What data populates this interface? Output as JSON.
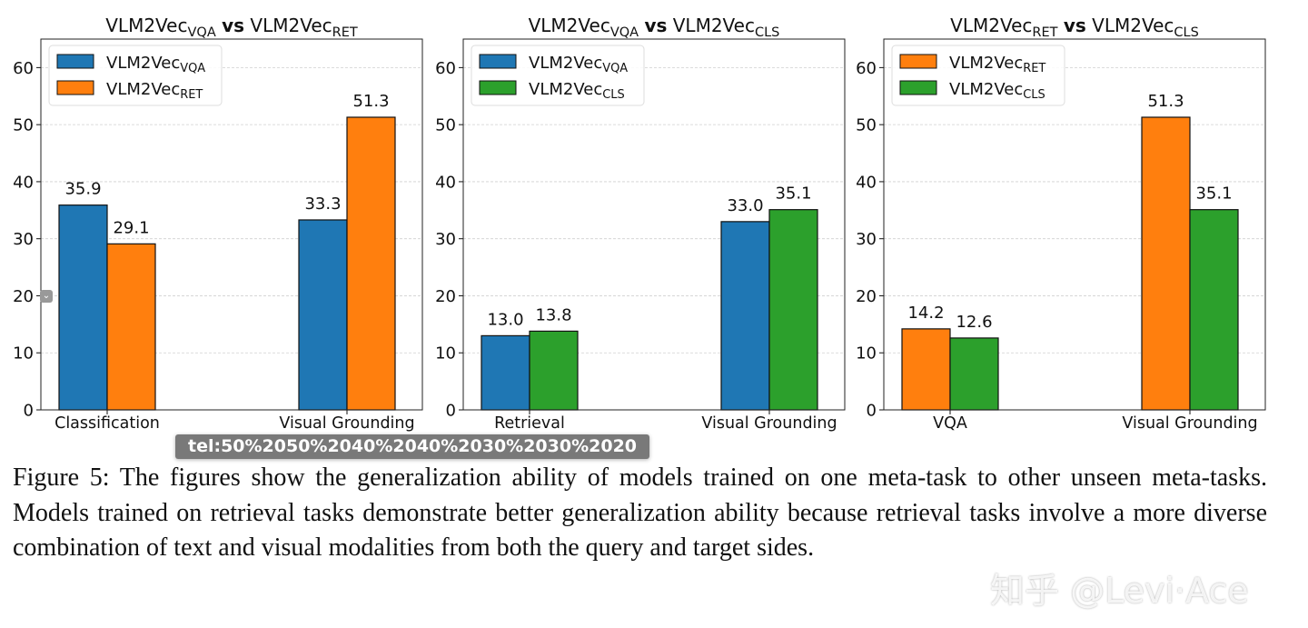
{
  "colors": {
    "VQA": "#1f77b4",
    "RET": "#ff7f0e",
    "CLS": "#2ca02c"
  },
  "chart_data": [
    {
      "type": "bar",
      "title": {
        "left": "VLM2Vec",
        "left_sub": "VQA",
        "vs": "vs",
        "right": "VLM2Vec",
        "right_sub": "RET"
      },
      "categories": [
        "Classification",
        "Visual Grounding"
      ],
      "series": [
        {
          "name": "VLM2Vec",
          "sub": "VQA",
          "color_key": "VQA",
          "values": [
            35.9,
            33.3
          ],
          "labels": [
            "35.9",
            "33.3"
          ]
        },
        {
          "name": "VLM2Vec",
          "sub": "RET",
          "color_key": "RET",
          "values": [
            29.1,
            51.3
          ],
          "labels": [
            "29.1",
            "51.3"
          ]
        }
      ],
      "yticks": [
        "0",
        "10",
        "20",
        "30",
        "40",
        "50",
        "60"
      ],
      "ylim": [
        0,
        65
      ],
      "grid": true,
      "legend": "top-left"
    },
    {
      "type": "bar",
      "title": {
        "left": "VLM2Vec",
        "left_sub": "VQA",
        "vs": "vs",
        "right": "VLM2Vec",
        "right_sub": "CLS"
      },
      "categories": [
        "Retrieval",
        "Visual Grounding"
      ],
      "series": [
        {
          "name": "VLM2Vec",
          "sub": "VQA",
          "color_key": "VQA",
          "values": [
            13.0,
            33.0
          ],
          "labels": [
            "13.0",
            "33.0"
          ]
        },
        {
          "name": "VLM2Vec",
          "sub": "CLS",
          "color_key": "CLS",
          "values": [
            13.8,
            35.1
          ],
          "labels": [
            "13.8",
            "35.1"
          ]
        }
      ],
      "yticks": [
        "0",
        "10",
        "20",
        "30",
        "40",
        "50",
        "60"
      ],
      "ylim": [
        0,
        65
      ],
      "grid": true,
      "legend": "top-left"
    },
    {
      "type": "bar",
      "title": {
        "left": "VLM2Vec",
        "left_sub": "RET",
        "vs": "vs",
        "right": "VLM2Vec",
        "right_sub": "CLS"
      },
      "categories": [
        "VQA",
        "Visual Grounding"
      ],
      "series": [
        {
          "name": "VLM2Vec",
          "sub": "RET",
          "color_key": "RET",
          "values": [
            14.2,
            51.3
          ],
          "labels": [
            "14.2",
            "51.3"
          ]
        },
        {
          "name": "VLM2Vec",
          "sub": "CLS",
          "color_key": "CLS",
          "values": [
            12.6,
            35.1
          ],
          "labels": [
            "12.6",
            "35.1"
          ]
        }
      ],
      "yticks": [
        "0",
        "10",
        "20",
        "30",
        "40",
        "50",
        "60"
      ],
      "ylim": [
        0,
        65
      ],
      "grid": true,
      "legend": "top-left"
    }
  ],
  "caption": "Figure 5: The figures show the generalization ability of models trained on one meta-task to other unseen meta-tasks. Models trained on retrieval tasks demonstrate better generalization ability because retrieval tasks involve a more diverse combination of text and visual modalities from both the query and target sides.",
  "tooltip": "tel:50%2050%2040%2040%2030%2030%2020",
  "watermark": "知乎 @Levi·Ace",
  "mini_icon": "chevron-down-icon"
}
